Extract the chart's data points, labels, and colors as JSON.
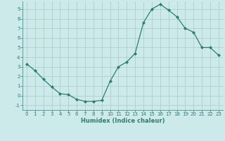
{
  "x": [
    0,
    1,
    2,
    3,
    4,
    5,
    6,
    7,
    8,
    9,
    10,
    11,
    12,
    13,
    14,
    15,
    16,
    17,
    18,
    19,
    20,
    21,
    22,
    23
  ],
  "y": [
    3.3,
    2.6,
    1.7,
    0.9,
    0.2,
    0.1,
    -0.4,
    -0.6,
    -0.6,
    -0.5,
    1.5,
    3.0,
    3.5,
    4.4,
    7.6,
    9.0,
    9.5,
    8.9,
    8.2,
    7.0,
    6.6,
    5.0,
    5.0,
    4.2
  ],
  "line_color": "#2e7d72",
  "marker_color": "#2e7d72",
  "bg_color": "#cceaea",
  "grid_color": "#aac8c8",
  "xlabel": "Humidex (Indice chaleur)",
  "xlabel_color": "#2e7d72",
  "tick_color": "#2e7d72",
  "axis_color": "#5a8a8a",
  "ylim": [
    -1.5,
    9.8
  ],
  "xlim": [
    -0.5,
    23.5
  ],
  "yticks": [
    -1,
    0,
    1,
    2,
    3,
    4,
    5,
    6,
    7,
    8,
    9
  ],
  "xticks": [
    0,
    1,
    2,
    3,
    4,
    5,
    6,
    7,
    8,
    9,
    10,
    11,
    12,
    13,
    14,
    15,
    16,
    17,
    18,
    19,
    20,
    21,
    22,
    23
  ],
  "tick_fontsize": 5.0,
  "xlabel_fontsize": 6.0
}
